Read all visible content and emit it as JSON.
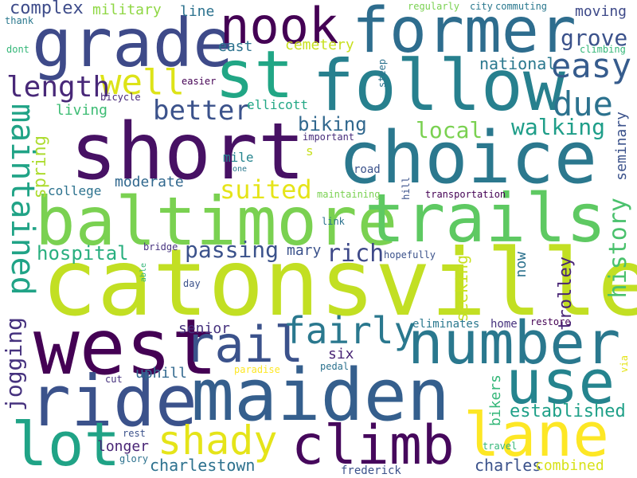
{
  "cloud": {
    "words": [
      {
        "text": "catonsville",
        "color": "#c2df23"
      },
      {
        "text": "choice",
        "color": "#2b788e"
      },
      {
        "text": "short",
        "color": "#471164"
      },
      {
        "text": "follow",
        "color": "#27808e"
      },
      {
        "text": "maiden",
        "color": "#355f8d"
      },
      {
        "text": "baltimore",
        "color": "#7ad151"
      },
      {
        "text": "trails",
        "color": "#5ec962"
      },
      {
        "text": "former",
        "color": "#2e6d8e"
      },
      {
        "text": "number",
        "color": "#2a788e"
      },
      {
        "text": "grade",
        "color": "#3e4a89"
      },
      {
        "text": "west",
        "color": "#440154"
      },
      {
        "text": "ride",
        "color": "#3b528b"
      },
      {
        "text": "st",
        "color": "#21a685"
      },
      {
        "text": "lane",
        "color": "#fde725"
      },
      {
        "text": "climb",
        "color": "#46085c"
      },
      {
        "text": "use",
        "color": "#25848e"
      },
      {
        "text": "nook",
        "color": "#440154"
      },
      {
        "text": "lot",
        "color": "#20a386"
      },
      {
        "text": "rail",
        "color": "#3b528b"
      },
      {
        "text": "shady",
        "color": "#e5e419"
      },
      {
        "text": "maintained",
        "color": "#20a386"
      },
      {
        "text": "fairly",
        "color": "#2a788e"
      },
      {
        "text": "well",
        "color": "#dde318"
      },
      {
        "text": "easy",
        "color": "#365c8d"
      },
      {
        "text": "length",
        "color": "#482878"
      },
      {
        "text": "due",
        "color": "#2c728e"
      },
      {
        "text": "better",
        "color": "#3b528b"
      },
      {
        "text": "suited",
        "color": "#e5e419"
      },
      {
        "text": "grove",
        "color": "#3b528b"
      },
      {
        "text": "history",
        "color": "#4ac16d"
      },
      {
        "text": "jogging",
        "color": "#46327e"
      },
      {
        "text": "rich",
        "color": "#3e4989"
      },
      {
        "text": "passing",
        "color": "#3b528b"
      },
      {
        "text": "walking",
        "color": "#1f9e89"
      },
      {
        "text": "local",
        "color": "#7ad151"
      },
      {
        "text": "biking",
        "color": "#31688e"
      },
      {
        "text": "hospital",
        "color": "#29af7f"
      },
      {
        "text": "established",
        "color": "#1fa088"
      },
      {
        "text": "national",
        "color": "#2a788e"
      },
      {
        "text": "spring",
        "color": "#addc30"
      },
      {
        "text": "complex",
        "color": "#3e4c8a"
      },
      {
        "text": "military",
        "color": "#8fd744"
      },
      {
        "text": "line",
        "color": "#2c728e"
      },
      {
        "text": "moving",
        "color": "#3e4a89"
      },
      {
        "text": "east",
        "color": "#2c728e"
      },
      {
        "text": "cemetery",
        "color": "#c8e020"
      },
      {
        "text": "charlestown",
        "color": "#2d718e"
      },
      {
        "text": "charles",
        "color": "#3b528b"
      },
      {
        "text": "combined",
        "color": "#d8e219"
      },
      {
        "text": "bikers",
        "color": "#35b779"
      },
      {
        "text": "trolley",
        "color": "#482475"
      },
      {
        "text": "seminary",
        "color": "#3b528b"
      },
      {
        "text": "seeking",
        "color": "#c8e020"
      },
      {
        "text": "now",
        "color": "#2c728e"
      },
      {
        "text": "mary",
        "color": "#3b528b"
      },
      {
        "text": "moderate",
        "color": "#31688e"
      },
      {
        "text": "college",
        "color": "#2c728e"
      },
      {
        "text": "senior",
        "color": "#46327e"
      },
      {
        "text": "uphill",
        "color": "#31688e"
      },
      {
        "text": "longer",
        "color": "#482475"
      },
      {
        "text": "living",
        "color": "#3dbc74"
      },
      {
        "text": "ellicott",
        "color": "#22a785"
      },
      {
        "text": "mile",
        "color": "#25848e"
      },
      {
        "text": "six",
        "color": "#482475"
      },
      {
        "text": "home",
        "color": "#46327e"
      },
      {
        "text": "road",
        "color": "#3b528b"
      },
      {
        "text": "s",
        "color": "#c8e020"
      },
      {
        "text": "important",
        "color": "#472c7a"
      },
      {
        "text": "regularly",
        "color": "#7ad151"
      },
      {
        "text": "city",
        "color": "#2a788e"
      },
      {
        "text": "commuting",
        "color": "#2a788e"
      },
      {
        "text": "thank",
        "color": "#2a788e"
      },
      {
        "text": "dont",
        "color": "#35b779"
      },
      {
        "text": "climbing",
        "color": "#35b779"
      },
      {
        "text": "bicycle",
        "color": "#482878"
      },
      {
        "text": "easier",
        "color": "#440154"
      },
      {
        "text": "steep",
        "color": "#2c728e"
      },
      {
        "text": "hill",
        "color": "#3b528b"
      },
      {
        "text": "maintaining",
        "color": "#7ad151"
      },
      {
        "text": "transportation",
        "color": "#440154"
      },
      {
        "text": "link",
        "color": "#2c728e"
      },
      {
        "text": "hopefully",
        "color": "#3b528b"
      },
      {
        "text": "one",
        "color": "#2a788e"
      },
      {
        "text": "bridge",
        "color": "#46327e"
      },
      {
        "text": "able",
        "color": "#35b779"
      },
      {
        "text": "day",
        "color": "#3b528b"
      },
      {
        "text": "eliminates",
        "color": "#2a788e"
      },
      {
        "text": "restore",
        "color": "#440154"
      },
      {
        "text": "cut",
        "color": "#46327e"
      },
      {
        "text": "paradise",
        "color": "#fde725"
      },
      {
        "text": "pedal",
        "color": "#2c728e"
      },
      {
        "text": "via",
        "color": "#e5e419"
      },
      {
        "text": "rest",
        "color": "#3b528b"
      },
      {
        "text": "glory",
        "color": "#2c728e"
      },
      {
        "text": "travel",
        "color": "#35b779"
      },
      {
        "text": "frederick",
        "color": "#3b528b"
      }
    ]
  }
}
